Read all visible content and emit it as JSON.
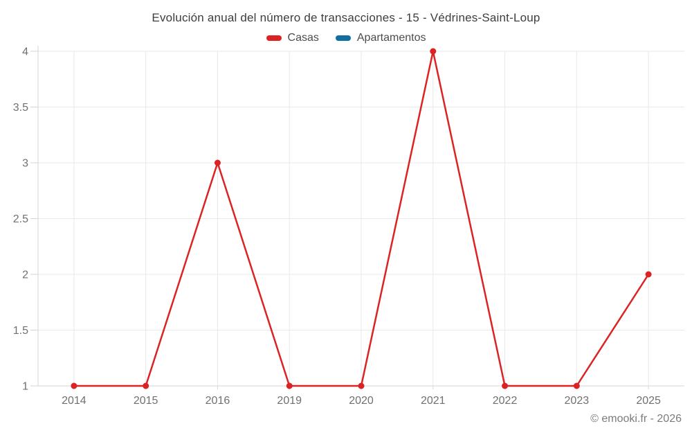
{
  "chart_data": {
    "type": "line",
    "title": "Evolución anual del número de transacciones - 15 - Védrines-Saint-Loup",
    "categories": [
      "2014",
      "2015",
      "2016",
      "2019",
      "2020",
      "2021",
      "2022",
      "2023",
      "2025"
    ],
    "series": [
      {
        "name": "Casas",
        "color": "#dc2323",
        "values": [
          1,
          1,
          3,
          1,
          1,
          4,
          1,
          1,
          2
        ]
      },
      {
        "name": "Apartamentos",
        "color": "#126ea0",
        "values": []
      }
    ],
    "ylim": [
      1,
      4
    ],
    "yticks": [
      1,
      1.5,
      2,
      2.5,
      3,
      3.5,
      4
    ],
    "grid": true,
    "legend_position": "top",
    "marker": "circle"
  },
  "styles": {
    "grid_color": "#e9e9e9",
    "axis_color": "#d5d5d5",
    "axis_label_color": "#707070"
  },
  "footer": {
    "text": "© emooki.fr - 2026"
  }
}
